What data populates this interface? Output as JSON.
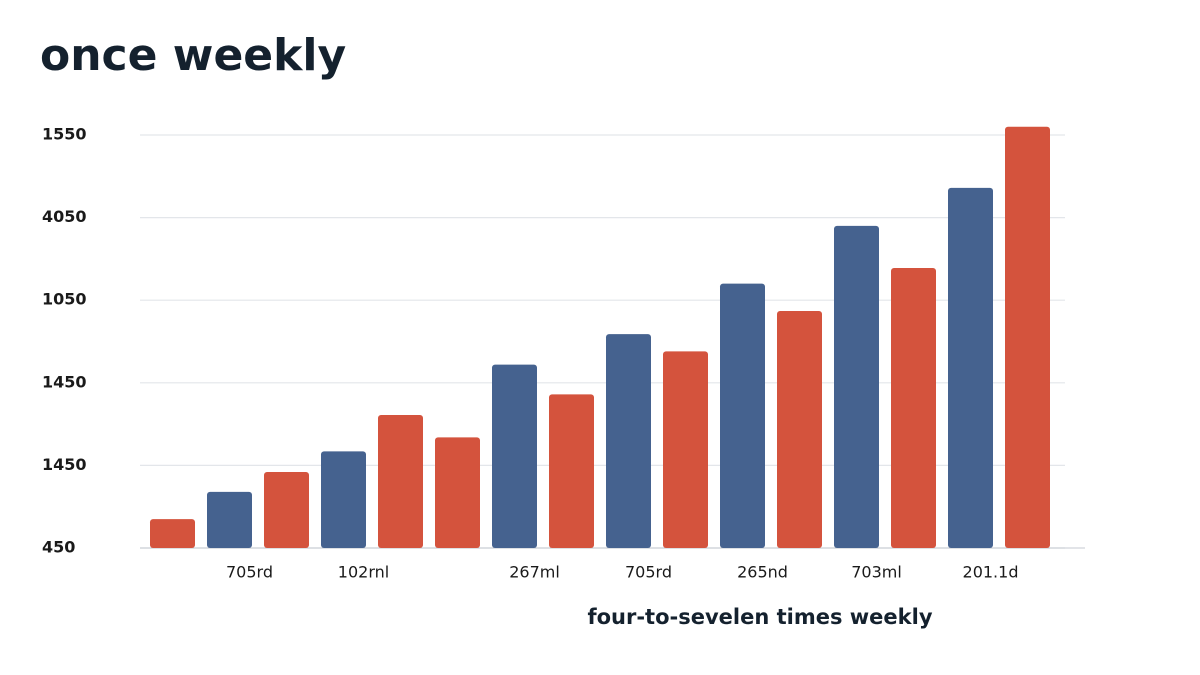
{
  "chart_data": {
    "type": "bar",
    "title": "once weekly",
    "x_label": "four-to-sevelen times weekly",
    "categories": [
      null,
      "705rd",
      null,
      "102rnl",
      null,
      null,
      "267ml",
      null,
      "705rd",
      null,
      "265nd",
      null,
      "703ml",
      null,
      "201.1d",
      null
    ],
    "values": [
      0.35,
      0.68,
      0.92,
      1.17,
      1.61,
      1.34,
      2.22,
      1.86,
      2.59,
      2.38,
      3.2,
      2.87,
      3.9,
      3.39,
      4.36,
      5.1
    ],
    "colors": [
      "#d4533d",
      "#45628f",
      "#d4533d",
      "#45628f",
      "#d4533d",
      "#d4533d",
      "#45628f",
      "#d4533d",
      "#45628f",
      "#d4533d",
      "#45628f",
      "#d4533d",
      "#45628f",
      "#d4533d",
      "#45628f",
      "#d4533d"
    ],
    "ylim": [
      0,
      5.2
    ],
    "yticks": [
      {
        "value": 0,
        "label": "450"
      },
      {
        "value": 1,
        "label": "1450"
      },
      {
        "value": 2,
        "label": "1450"
      },
      {
        "value": 3,
        "label": "1050"
      },
      {
        "value": 4,
        "label": "4050"
      },
      {
        "value": 5,
        "label": "1550"
      }
    ],
    "grid": true
  }
}
